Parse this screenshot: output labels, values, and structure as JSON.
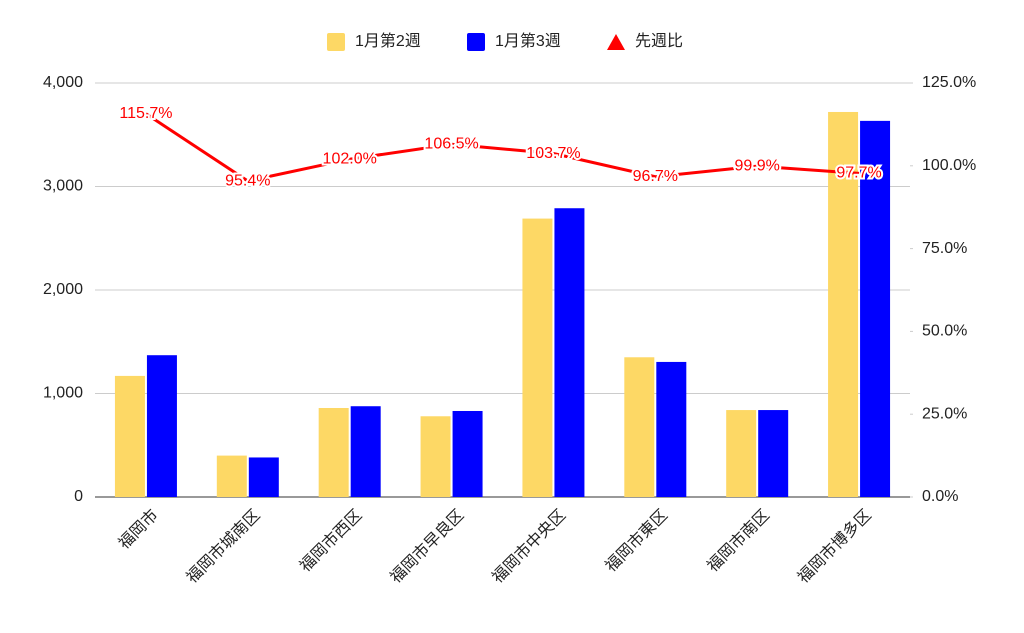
{
  "chart_data": {
    "type": "bar-line",
    "categories": [
      "福岡市",
      "福岡市城南区",
      "福岡市西区",
      "福岡市早良区",
      "福岡市中央区",
      "福岡市東区",
      "福岡市南区",
      "福岡市博多区"
    ],
    "series": [
      {
        "name": "1月第2週",
        "color": "#fdd865",
        "type": "bar",
        "values": [
          1170,
          400,
          860,
          780,
          2690,
          1350,
          840,
          3720
        ]
      },
      {
        "name": "1月第3週",
        "color": "#0000ff",
        "type": "bar",
        "values": [
          1370,
          382,
          877,
          831,
          2790,
          1305,
          840,
          3634
        ]
      },
      {
        "name": "先週比",
        "color": "#ff0000",
        "type": "line",
        "axis": "y2",
        "values": [
          115.7,
          95.4,
          102.0,
          106.5,
          103.7,
          96.7,
          99.9,
          97.7
        ],
        "value_labels": [
          "115.7%",
          "95.4%",
          "102.0%",
          "106.5%",
          "103.7%",
          "96.7%",
          "99.9%",
          "97.7%"
        ]
      }
    ],
    "ylim": [
      0,
      4000
    ],
    "yticks": [
      0,
      {
        "value": 1000,
        "label": "1,000"
      },
      {
        "value": 2000,
        "label": "2,000"
      },
      {
        "value": 3000,
        "label": "3,000"
      },
      {
        "value": 4000,
        "label": "4,000"
      }
    ],
    "y2lim": [
      0,
      125
    ],
    "y2ticks": [
      {
        "value": 0,
        "label": "0.0%"
      },
      {
        "value": 25,
        "label": "25.0%"
      },
      {
        "value": 50,
        "label": "50.0%"
      },
      {
        "value": 75,
        "label": "75.0%"
      },
      {
        "value": 100,
        "label": "100.0%"
      },
      {
        "value": 125,
        "label": "125.0%"
      }
    ],
    "grid": true,
    "legend": "top"
  }
}
